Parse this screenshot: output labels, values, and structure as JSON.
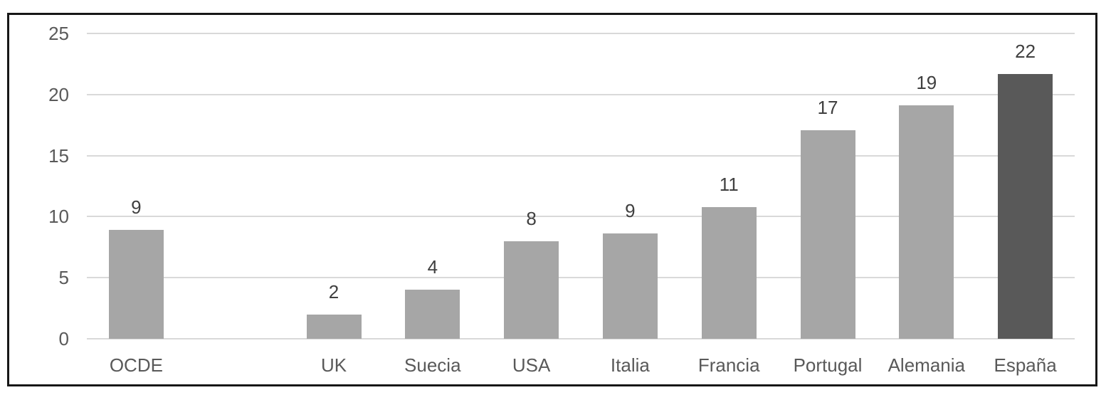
{
  "chart_data": {
    "type": "bar",
    "title": "",
    "xlabel": "",
    "ylabel": "",
    "categories": [
      "OCDE",
      "UK",
      "Suecia",
      "USA",
      "Italia",
      "Francia",
      "Portugal",
      "Alemania",
      "España"
    ],
    "values": [
      9,
      2,
      4,
      8,
      9,
      11,
      17,
      19,
      22
    ],
    "bar_heights_precise": [
      8.9,
      2.0,
      4.0,
      8.0,
      8.6,
      10.8,
      17.1,
      19.1,
      21.7
    ],
    "slots": [
      0,
      2,
      3,
      4,
      5,
      6,
      7,
      8,
      9
    ],
    "total_slots": 10,
    "yticks": [
      0,
      5,
      10,
      15,
      20,
      25
    ],
    "ylim": [
      0,
      25
    ],
    "grid": true,
    "legend": false,
    "highlight_category": "España",
    "data_labels_visible": true,
    "colors": {
      "bar": "#a6a6a6",
      "highlight": "#595959",
      "gridline": "#d9d9d9",
      "tick_label": "#595959",
      "category_label": "#595959",
      "data_label": "#404040",
      "frame_border": "#171717",
      "background": "#ffffff"
    }
  }
}
